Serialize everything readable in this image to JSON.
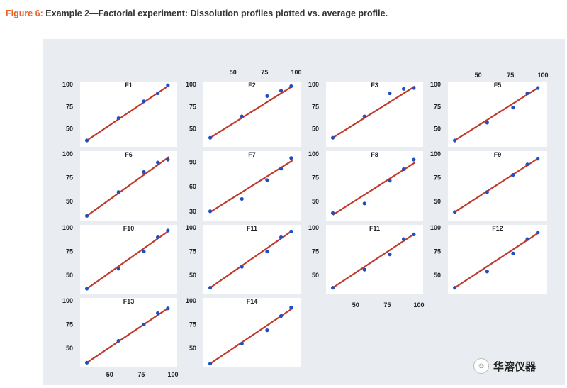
{
  "caption": {
    "label": "Figure 6:",
    "text": "Example 2—Factorial experiment: Dissolution profiles plotted vs. average profile."
  },
  "watermark": {
    "text": "华溶仪器",
    "icon": "wechat-icon"
  },
  "colors": {
    "fit_line": "#c0392b",
    "points": "#1f4fc1",
    "panel_bg": "#ffffff",
    "figure_bg": "#e9edf1"
  },
  "chart_data": {
    "type": "scatter",
    "x_axis_ticks": [
      50,
      75,
      100
    ],
    "xlim": [
      30,
      100
    ],
    "grid": false,
    "legend": "none",
    "panels": [
      {
        "title": "F1",
        "y_ticks": [
          50,
          75,
          100
        ],
        "ylim": [
          33,
          100
        ],
        "points": [
          [
            32,
            37
          ],
          [
            57,
            62
          ],
          [
            77,
            81
          ],
          [
            88,
            90
          ],
          [
            96,
            99
          ]
        ],
        "fit": [
          [
            32,
            37
          ],
          [
            97,
            99
          ]
        ]
      },
      {
        "title": "F2",
        "y_ticks": [
          50,
          75,
          100
        ],
        "ylim": [
          33,
          100
        ],
        "points": [
          [
            32,
            40
          ],
          [
            57,
            64
          ],
          [
            77,
            87
          ],
          [
            88,
            93
          ],
          [
            96,
            98
          ]
        ],
        "fit": [
          [
            32,
            40
          ],
          [
            97,
            98
          ]
        ]
      },
      {
        "title": "F3",
        "y_ticks": [
          50,
          75,
          100
        ],
        "ylim": [
          33,
          100
        ],
        "points": [
          [
            32,
            40
          ],
          [
            57,
            64
          ],
          [
            77,
            90
          ],
          [
            88,
            95
          ],
          [
            96,
            96
          ]
        ],
        "fit": [
          [
            32,
            40
          ],
          [
            97,
            98
          ]
        ]
      },
      {
        "title": "F5",
        "y_ticks": [
          50,
          75,
          100
        ],
        "ylim": [
          33,
          100
        ],
        "points": [
          [
            32,
            37
          ],
          [
            57,
            57
          ],
          [
            77,
            74
          ],
          [
            88,
            90
          ],
          [
            96,
            96
          ]
        ],
        "fit": [
          [
            32,
            37
          ],
          [
            97,
            97
          ]
        ]
      },
      {
        "title": "F6",
        "y_ticks": [
          50,
          75,
          100
        ],
        "ylim": [
          33,
          100
        ],
        "points": [
          [
            32,
            35
          ],
          [
            57,
            60
          ],
          [
            77,
            81
          ],
          [
            88,
            91
          ],
          [
            96,
            94
          ]
        ],
        "fit": [
          [
            32,
            35
          ],
          [
            97,
            97
          ]
        ]
      },
      {
        "title": "F7",
        "y_ticks": [
          30,
          60,
          90
        ],
        "ylim": [
          22,
          100
        ],
        "points": [
          [
            32,
            30
          ],
          [
            57,
            45
          ],
          [
            77,
            68
          ],
          [
            88,
            82
          ],
          [
            96,
            95
          ]
        ],
        "fit": [
          [
            32,
            29
          ],
          [
            97,
            92
          ]
        ]
      },
      {
        "title": "F8",
        "y_ticks": [
          50,
          75,
          100
        ],
        "ylim": [
          33,
          100
        ],
        "points": [
          [
            32,
            38
          ],
          [
            57,
            48
          ],
          [
            77,
            72
          ],
          [
            88,
            84
          ],
          [
            96,
            94
          ]
        ],
        "fit": [
          [
            32,
            36
          ],
          [
            97,
            91
          ]
        ]
      },
      {
        "title": "F9",
        "y_ticks": [
          50,
          75,
          100
        ],
        "ylim": [
          33,
          100
        ],
        "points": [
          [
            32,
            39
          ],
          [
            57,
            60
          ],
          [
            77,
            78
          ],
          [
            88,
            89
          ],
          [
            96,
            95
          ]
        ],
        "fit": [
          [
            32,
            39
          ],
          [
            97,
            96
          ]
        ]
      },
      {
        "title": "F10",
        "y_ticks": [
          50,
          75,
          100
        ],
        "ylim": [
          33,
          100
        ],
        "points": [
          [
            32,
            36
          ],
          [
            57,
            57
          ],
          [
            77,
            75
          ],
          [
            88,
            90
          ],
          [
            96,
            97
          ]
        ],
        "fit": [
          [
            32,
            36
          ],
          [
            97,
            97
          ]
        ]
      },
      {
        "title": "F11",
        "y_ticks": [
          50,
          75,
          100
        ],
        "ylim": [
          33,
          100
        ],
        "points": [
          [
            32,
            37
          ],
          [
            57,
            59
          ],
          [
            77,
            75
          ],
          [
            88,
            90
          ],
          [
            96,
            96
          ]
        ],
        "fit": [
          [
            32,
            37
          ],
          [
            97,
            97
          ]
        ]
      },
      {
        "title": "F11",
        "y_ticks": [
          50,
          75,
          100
        ],
        "ylim": [
          33,
          100
        ],
        "points": [
          [
            32,
            37
          ],
          [
            57,
            56
          ],
          [
            77,
            72
          ],
          [
            88,
            88
          ],
          [
            96,
            93
          ]
        ],
        "fit": [
          [
            32,
            37
          ],
          [
            97,
            94
          ]
        ]
      },
      {
        "title": "F12",
        "y_ticks": [
          50,
          75,
          100
        ],
        "ylim": [
          33,
          100
        ],
        "points": [
          [
            32,
            37
          ],
          [
            57,
            54
          ],
          [
            77,
            73
          ],
          [
            88,
            88
          ],
          [
            96,
            95
          ]
        ],
        "fit": [
          [
            32,
            37
          ],
          [
            97,
            95
          ]
        ]
      },
      {
        "title": "F13",
        "y_ticks": [
          50,
          75,
          100
        ],
        "ylim": [
          33,
          100
        ],
        "points": [
          [
            32,
            35
          ],
          [
            57,
            58
          ],
          [
            77,
            75
          ],
          [
            88,
            87
          ],
          [
            96,
            92
          ]
        ],
        "fit": [
          [
            32,
            35
          ],
          [
            97,
            93
          ]
        ]
      },
      {
        "title": "F14",
        "y_ticks": [
          50,
          75,
          100
        ],
        "ylim": [
          33,
          100
        ],
        "points": [
          [
            32,
            34
          ],
          [
            57,
            55
          ],
          [
            77,
            69
          ],
          [
            88,
            84
          ],
          [
            96,
            93
          ]
        ],
        "fit": [
          [
            32,
            34
          ],
          [
            97,
            92
          ]
        ]
      }
    ]
  }
}
